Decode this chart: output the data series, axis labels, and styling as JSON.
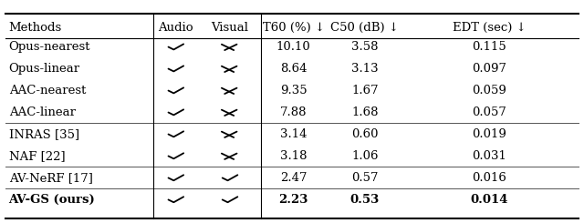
{
  "headers": [
    "Methods",
    "Audio",
    "Visual",
    "T60 (%) ↓",
    "C50 (dB) ↓",
    "EDT (sec) ↓"
  ],
  "rows": [
    {
      "method": "Opus-nearest",
      "audio": true,
      "visual": false,
      "t60": "10.10",
      "c50": "3.58",
      "edt": "0.115",
      "bold": false
    },
    {
      "method": "Opus-linear",
      "audio": true,
      "visual": false,
      "t60": "8.64",
      "c50": "3.13",
      "edt": "0.097",
      "bold": false
    },
    {
      "method": "AAC-nearest",
      "audio": true,
      "visual": false,
      "t60": "9.35",
      "c50": "1.67",
      "edt": "0.059",
      "bold": false
    },
    {
      "method": "AAC-linear",
      "audio": true,
      "visual": false,
      "t60": "7.88",
      "c50": "1.68",
      "edt": "0.057",
      "bold": false
    },
    {
      "method": "INRAS [35]",
      "audio": true,
      "visual": false,
      "t60": "3.14",
      "c50": "0.60",
      "edt": "0.019",
      "bold": false
    },
    {
      "method": "NAF [22]",
      "audio": true,
      "visual": false,
      "t60": "3.18",
      "c50": "1.06",
      "edt": "0.031",
      "bold": false
    },
    {
      "method": "AV-NeRF [17]",
      "audio": true,
      "visual": true,
      "t60": "2.47",
      "c50": "0.57",
      "edt": "0.016",
      "bold": false
    },
    {
      "method": "AV-GS (ours)",
      "audio": true,
      "visual": true,
      "t60": "2.23",
      "c50": "0.53",
      "edt": "0.014",
      "bold": true
    }
  ],
  "group_separators_after": [
    3,
    5,
    6
  ],
  "bg_color": "#ffffff",
  "text_color": "#000000",
  "font_size": 9.5,
  "check_color": "#000000",
  "cross_color": "#000000"
}
